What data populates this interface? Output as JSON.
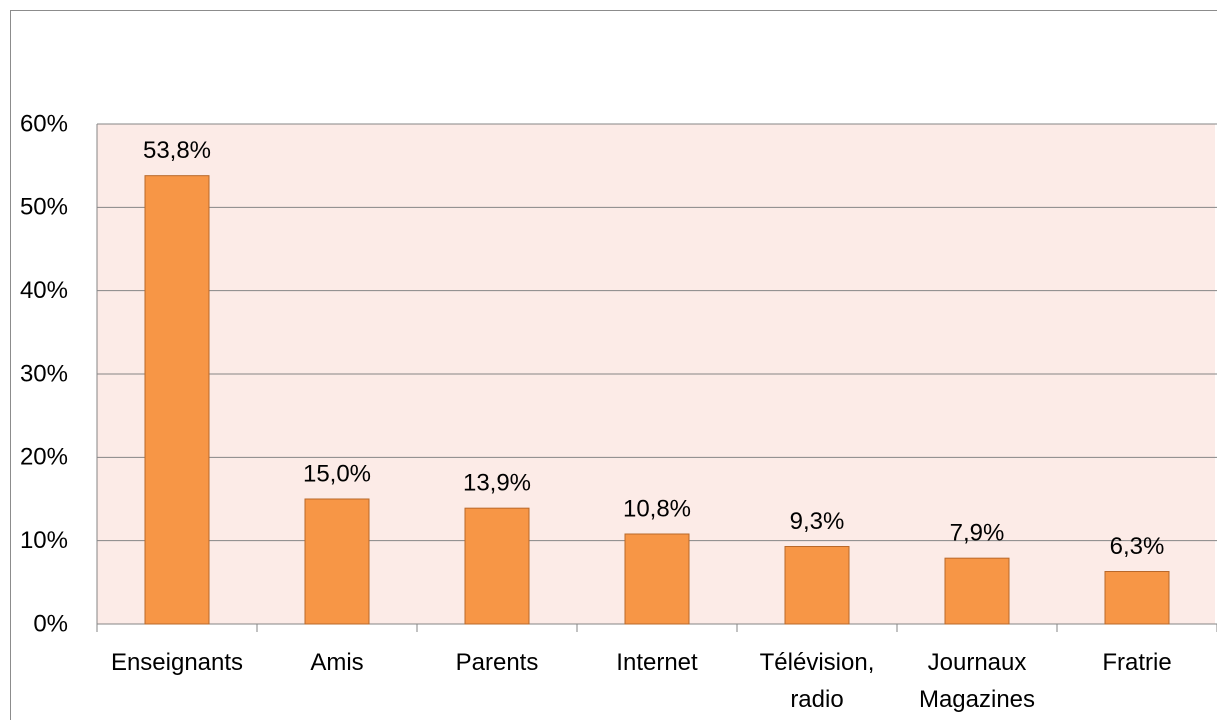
{
  "chart_data": {
    "type": "bar",
    "categories": [
      "Enseignants",
      "Amis",
      "Parents",
      "Internet",
      "Télévision,\nradio",
      "Journaux\nMagazines",
      "Fratrie"
    ],
    "values": [
      53.8,
      15.0,
      13.9,
      10.8,
      9.3,
      7.9,
      6.3
    ],
    "value_labels": [
      "53,8%",
      "15,0%",
      "13,9%",
      "10,8%",
      "9,3%",
      "7,9%",
      "6,3%"
    ],
    "color": "#f79646",
    "ylim": [
      0,
      60
    ],
    "yticks": [
      {
        "value": 0,
        "label": "0%"
      },
      {
        "value": 10,
        "label": "10%"
      },
      {
        "value": 20,
        "label": "20%"
      },
      {
        "value": 30,
        "label": "30%"
      },
      {
        "value": 40,
        "label": "40%"
      },
      {
        "value": 50,
        "label": "50%"
      },
      {
        "value": 60,
        "label": "60%"
      }
    ],
    "grid": true
  }
}
